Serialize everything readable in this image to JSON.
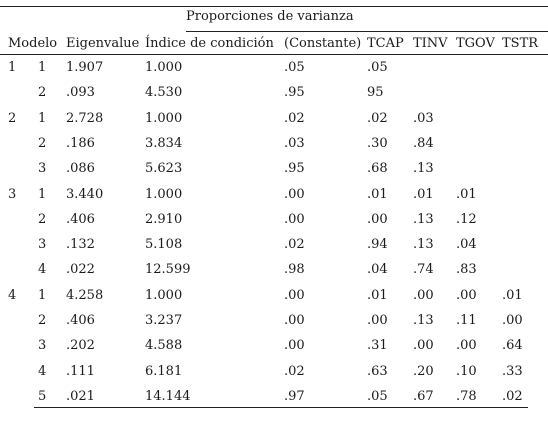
{
  "table": {
    "super_header": "Proporciones de varianza",
    "headers": [
      "Modelo",
      "",
      "Eigenvalue",
      "Índice de condición",
      "(Constante)",
      "TCAP",
      "TINV",
      "TGOV",
      "TSTR"
    ],
    "groups": [
      {
        "model": "1",
        "rows": [
          {
            "dim": "1",
            "eigen": "1.907",
            "cond": "1.000",
            "const": ".05",
            "tcap": ".05",
            "tinv": "",
            "tgov": "",
            "tstr": ""
          },
          {
            "dim": "2",
            "eigen": ".093",
            "cond": "4.530",
            "const": ".95",
            "tcap": "95",
            "tinv": "",
            "tgov": "",
            "tstr": ""
          }
        ]
      },
      {
        "model": "2",
        "rows": [
          {
            "dim": "1",
            "eigen": "2.728",
            "cond": "1.000",
            "const": ".02",
            "tcap": ".02",
            "tinv": ".03",
            "tgov": "",
            "tstr": ""
          },
          {
            "dim": "2",
            "eigen": ".186",
            "cond": "3.834",
            "const": ".03",
            "tcap": ".30",
            "tinv": ".84",
            "tgov": "",
            "tstr": ""
          },
          {
            "dim": "3",
            "eigen": ".086",
            "cond": "5.623",
            "const": ".95",
            "tcap": ".68",
            "tinv": ".13",
            "tgov": "",
            "tstr": ""
          }
        ]
      },
      {
        "model": "3",
        "rows": [
          {
            "dim": "1",
            "eigen": "3.440",
            "cond": "1.000",
            "const": ".00",
            "tcap": ".01",
            "tinv": ".01",
            "tgov": ".01",
            "tstr": ""
          },
          {
            "dim": "2",
            "eigen": ".406",
            "cond": "2.910",
            "const": ".00",
            "tcap": ".00",
            "tinv": ".13",
            "tgov": ".12",
            "tstr": ""
          },
          {
            "dim": "3",
            "eigen": ".132",
            "cond": "5.108",
            "const": ".02",
            "tcap": ".94",
            "tinv": ".13",
            "tgov": ".04",
            "tstr": ""
          },
          {
            "dim": "4",
            "eigen": ".022",
            "cond": "12.599",
            "const": ".98",
            "tcap": ".04",
            "tinv": ".74",
            "tgov": ".83",
            "tstr": ""
          }
        ]
      },
      {
        "model": "4",
        "rows": [
          {
            "dim": "1",
            "eigen": "4.258",
            "cond": "1.000",
            "const": ".00",
            "tcap": ".01",
            "tinv": ".00",
            "tgov": ".00",
            "tstr": ".01"
          },
          {
            "dim": "2",
            "eigen": ".406",
            "cond": "3.237",
            "const": ".00",
            "tcap": ".00",
            "tinv": ".13",
            "tgov": ".11",
            "tstr": ".00"
          },
          {
            "dim": "3",
            "eigen": ".202",
            "cond": "4.588",
            "const": ".00",
            "tcap": ".31",
            "tinv": ".00",
            "tgov": ".00",
            "tstr": ".64"
          },
          {
            "dim": "4",
            "eigen": ".111",
            "cond": "6.181",
            "const": ".02",
            "tcap": ".63",
            "tinv": ".20",
            "tgov": ".10",
            "tstr": ".33"
          },
          {
            "dim": "5",
            "eigen": ".021",
            "cond": "14.144",
            "const": ".97",
            "tcap": ".05",
            "tinv": ".67",
            "tgov": ".78",
            "tstr": ".02"
          }
        ]
      }
    ]
  }
}
